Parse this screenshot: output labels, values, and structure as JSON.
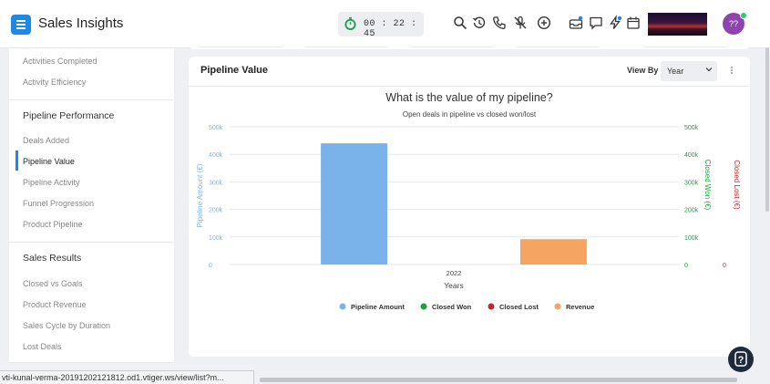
{
  "header": {
    "app_title": "Sales Insights",
    "timer": "00 : 22 : 45",
    "avatar_initials": "??"
  },
  "sidebar": {
    "top_items": [
      "Activities Completed",
      "Activity Efficiency"
    ],
    "pipeline_heading": "Pipeline Performance",
    "pipeline_items": [
      "Deals Added",
      "Pipeline Value",
      "Pipeline Activity",
      "Funnel Progression",
      "Product Pipeline"
    ],
    "active_item": "Pipeline Value",
    "sales_heading": "Sales Results",
    "sales_items": [
      "Closed vs Goals",
      "Product Revenue",
      "Sales Cycle by Duration",
      "Lost Deals"
    ]
  },
  "card": {
    "title": "Pipeline Value",
    "view_by_label": "View By",
    "view_by_value": "Year"
  },
  "chart_data": {
    "type": "bar",
    "title": "What is the value of my pipeline?",
    "subtitle": "Open deals in pipeline vs closed won/lost",
    "categories": [
      "2022"
    ],
    "xlabel": "Years",
    "y_left": {
      "label": "Pipeline Amount (€)",
      "ticks": [
        "0",
        "100k",
        "200k",
        "300k",
        "400k",
        "500k"
      ],
      "ylim": [
        0,
        500000
      ],
      "color": "#7ab3ea"
    },
    "y_right1": {
      "label": "Closed Won (€)",
      "ticks": [
        "0",
        "100k",
        "200k",
        "300k",
        "400k",
        "500k"
      ],
      "ylim": [
        0,
        500000
      ],
      "color": "#1aa33a"
    },
    "y_right2": {
      "label": "Closed Lost (€)",
      "ticks": [
        "0"
      ],
      "color": "#c0282d"
    },
    "series": [
      {
        "name": "Pipeline Amount",
        "color": "#7ab3ea",
        "values": [
          440000
        ]
      },
      {
        "name": "Closed Won",
        "color": "#1aa33a",
        "values": [
          0
        ]
      },
      {
        "name": "Closed Lost",
        "color": "#c0282d",
        "values": [
          0
        ]
      },
      {
        "name": "Revenue",
        "color": "#f5a462",
        "values": [
          92000
        ]
      }
    ],
    "grid": true,
    "legend": "bottom"
  },
  "statusbar": {
    "url": "vti-kunal-verma-20191202121812.od1.vtiger.ws/view/list?m..."
  },
  "help": {
    "label": "?"
  }
}
